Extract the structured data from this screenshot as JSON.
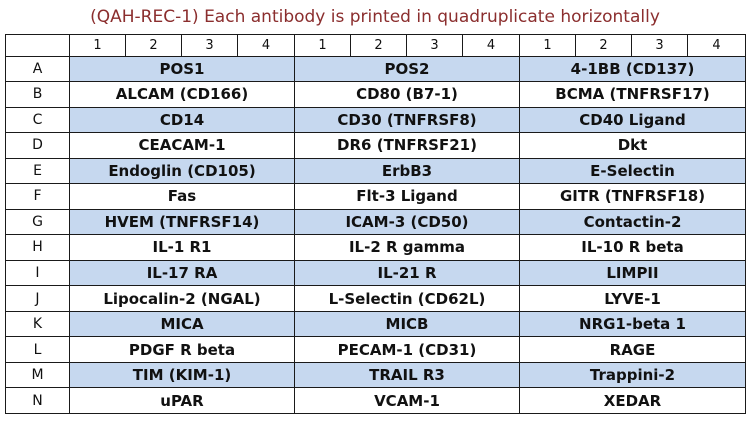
{
  "title": "(QAH-REC-1) Each antibody is printed in quadruplicate horizontally",
  "column_numbers": [
    "1",
    "2",
    "3",
    "4",
    "1",
    "2",
    "3",
    "4",
    "1",
    "2",
    "3",
    "4"
  ],
  "colors": {
    "shaded_row": "#c6d8ef",
    "title_text": "#8B2E2E"
  },
  "rows": [
    {
      "label": "A",
      "cells": [
        "POS1",
        "POS2",
        "4-1BB (CD137)"
      ]
    },
    {
      "label": "B",
      "cells": [
        "ALCAM (CD166)",
        "CD80 (B7-1)",
        "BCMA (TNFRSF17)"
      ]
    },
    {
      "label": "C",
      "cells": [
        "CD14",
        "CD30 (TNFRSF8)",
        "CD40 Ligand"
      ]
    },
    {
      "label": "D",
      "cells": [
        "CEACAM-1",
        "DR6 (TNFRSF21)",
        "Dkt"
      ]
    },
    {
      "label": "E",
      "cells": [
        "Endoglin (CD105)",
        "ErbB3",
        "E-Selectin"
      ]
    },
    {
      "label": "F",
      "cells": [
        "Fas",
        "Flt-3 Ligand",
        "GITR (TNFRSF18)"
      ]
    },
    {
      "label": "G",
      "cells": [
        "HVEM (TNFRSF14)",
        "ICAM-3 (CD50)",
        "Contactin-2"
      ]
    },
    {
      "label": "H",
      "cells": [
        "IL-1 R1",
        "IL-2 R gamma",
        "IL-10 R beta"
      ]
    },
    {
      "label": "I",
      "cells": [
        "IL-17 RA",
        "IL-21 R",
        "LIMPII"
      ]
    },
    {
      "label": "J",
      "cells": [
        "Lipocalin-2 (NGAL)",
        "L-Selectin (CD62L)",
        "LYVE-1"
      ]
    },
    {
      "label": "K",
      "cells": [
        "MICA",
        "MICB",
        "NRG1-beta 1"
      ]
    },
    {
      "label": "L",
      "cells": [
        "PDGF R beta",
        "PECAM-1 (CD31)",
        "RAGE"
      ]
    },
    {
      "label": "M",
      "cells": [
        "TIM (KIM-1)",
        "TRAIL R3",
        "Trappini-2"
      ]
    },
    {
      "label": "N",
      "cells": [
        "uPAR",
        "VCAM-1",
        "XEDAR"
      ]
    }
  ]
}
